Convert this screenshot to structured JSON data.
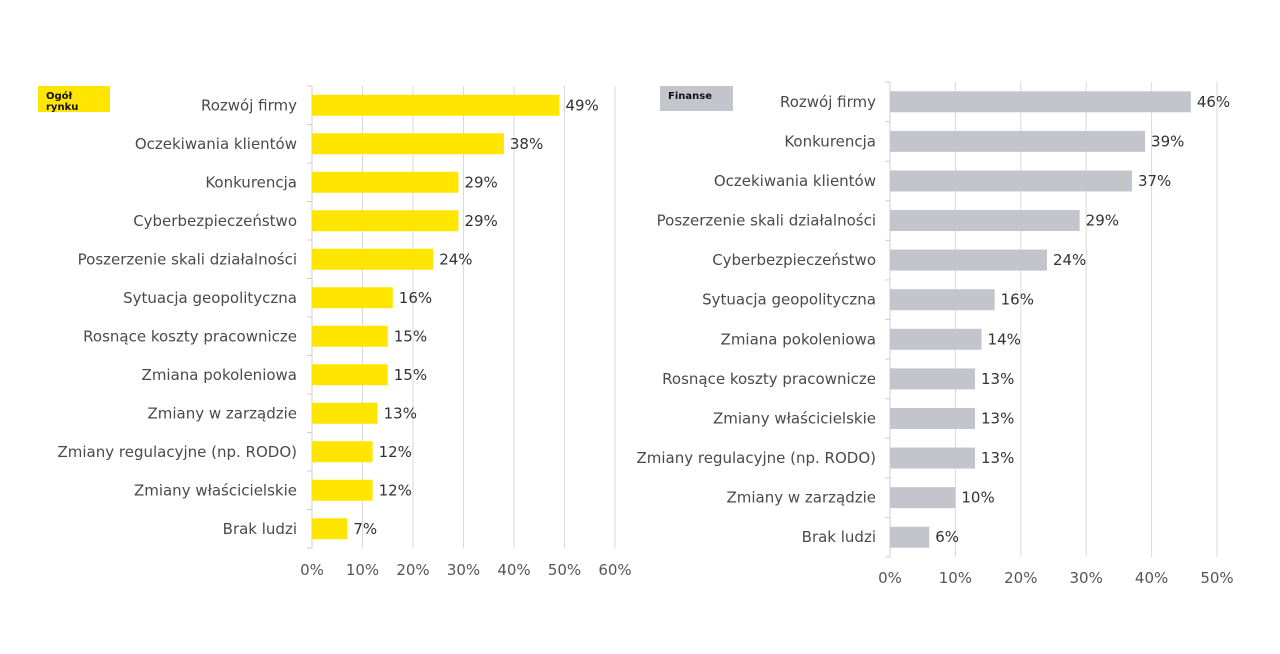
{
  "chart_data": [
    {
      "type": "bar",
      "orientation": "horizontal",
      "title": "Ogół rynku",
      "color": "#FFE600",
      "categories": [
        "Rozwój firmy",
        "Oczekiwania klientów",
        "Konkurencja",
        "Cyberbezpieczeństwo",
        "Poszerzenie skali działalności",
        "Sytuacja geopolityczna",
        "Rosnące koszty pracownicze",
        "Zmiana pokoleniowa",
        "Zmiany w zarządzie",
        "Zmiany regulacyjne (np. RODO)",
        "Zmiany właścicielskie",
        "Brak ludzi"
      ],
      "values": [
        49,
        38,
        29,
        29,
        24,
        16,
        15,
        15,
        13,
        12,
        12,
        7
      ],
      "value_labels": [
        "49%",
        "38%",
        "29%",
        "29%",
        "24%",
        "16%",
        "15%",
        "15%",
        "13%",
        "12%",
        "12%",
        "7%"
      ],
      "xlim": [
        0,
        60
      ],
      "xticks": [
        "0%",
        "10%",
        "20%",
        "30%",
        "40%",
        "50%",
        "60%"
      ],
      "grid": true
    },
    {
      "type": "bar",
      "orientation": "horizontal",
      "title": "Finanse",
      "color": "#C4C4CD",
      "categories": [
        "Rozwój firmy",
        "Konkurencja",
        "Oczekiwania klientów",
        "Poszerzenie skali działalności",
        "Cyberbezpieczeństwo",
        "Sytuacja geopolityczna",
        "Zmiana pokoleniowa",
        "Rosnące koszty pracownicze",
        "Zmiany właścicielskie",
        "Zmiany regulacyjne (np. RODO)",
        "Zmiany w zarządzie",
        "Brak ludzi"
      ],
      "values": [
        46,
        39,
        37,
        29,
        24,
        16,
        14,
        13,
        13,
        13,
        10,
        6
      ],
      "value_labels": [
        "46%",
        "39%",
        "37%",
        "29%",
        "24%",
        "16%",
        "14%",
        "13%",
        "13%",
        "13%",
        "10%",
        "6%"
      ],
      "xlim": [
        0,
        50
      ],
      "xticks": [
        "0%",
        "10%",
        "20%",
        "30%",
        "40%",
        "50%"
      ],
      "grid": true
    }
  ]
}
